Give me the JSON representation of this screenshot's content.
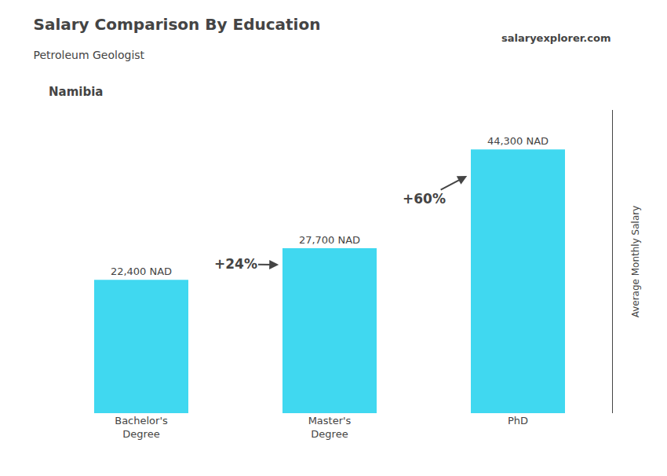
{
  "chart_data": {
    "type": "bar",
    "title": "Salary Comparison By Education",
    "subtitle": "Petroleum Geologist",
    "country": "Namibia",
    "source": "salaryexplorer.com",
    "ylabel": "Average Monthly Salary",
    "categories": [
      "Bachelor's\nDegree",
      "Master's\nDegree",
      "PhD"
    ],
    "values": [
      22400,
      27700,
      44300
    ],
    "value_labels": [
      "22,400 NAD",
      "27,700 NAD",
      "44,300 NAD"
    ],
    "data_labels": true,
    "annotations": [
      "+24%",
      "+60%"
    ],
    "color": "#40d8f0",
    "ylim": [
      0,
      50945
    ],
    "grid": false,
    "tick_labels": "x"
  }
}
